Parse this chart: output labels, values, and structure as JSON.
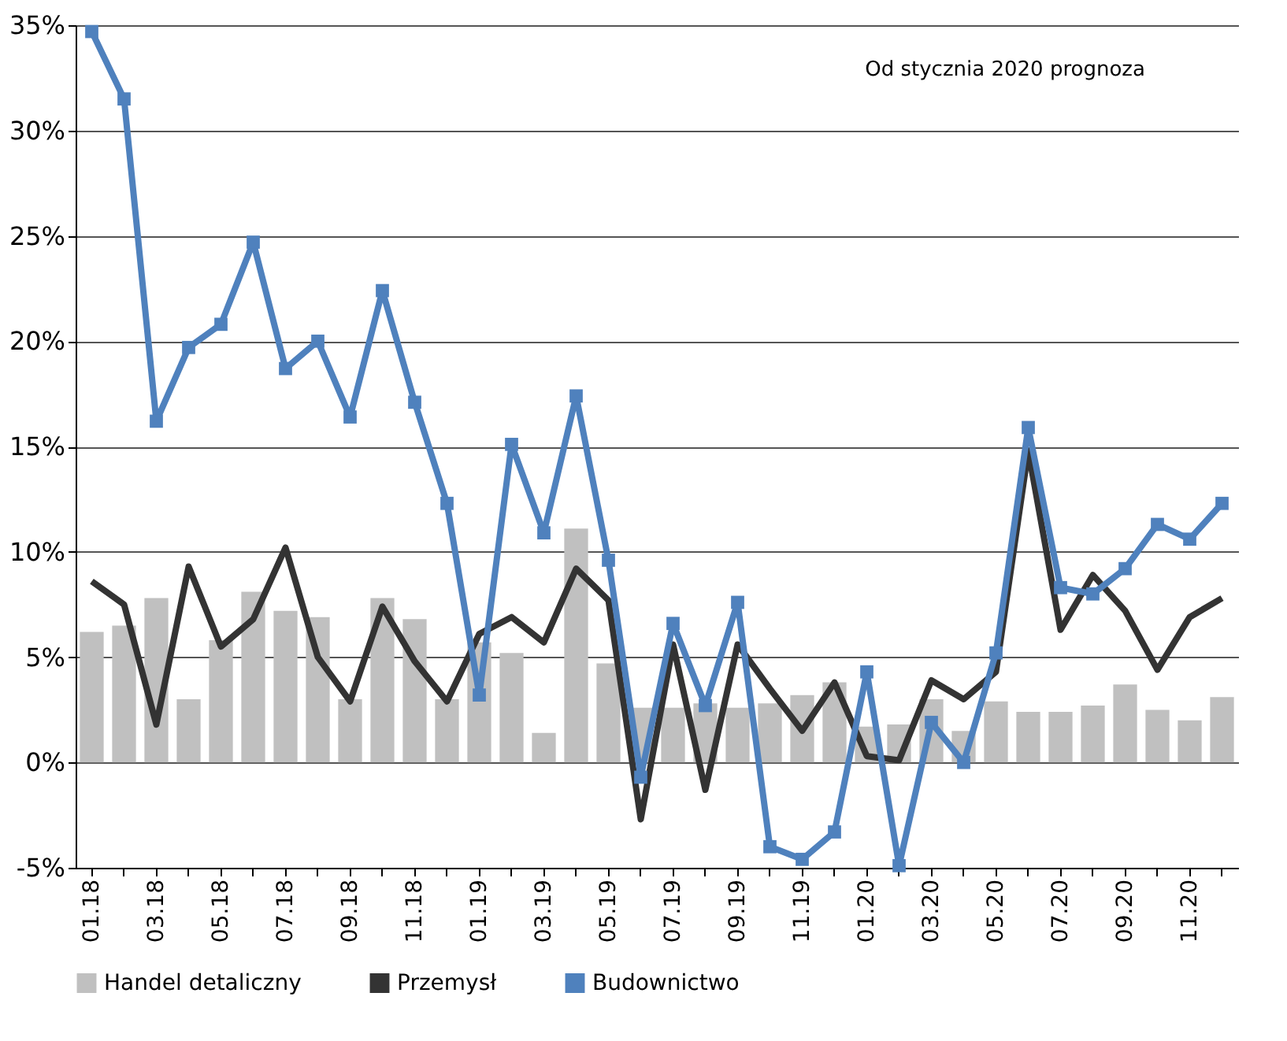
{
  "chart_data": {
    "type": "bar",
    "categories": [
      "01.18",
      null,
      "03.18",
      null,
      "05.18",
      null,
      "07.18",
      null,
      "09.18",
      null,
      "11.18",
      null,
      "01.19",
      null,
      "03.19",
      null,
      "05.19",
      null,
      "07.19",
      null,
      "09.19",
      null,
      "11.19",
      null,
      "01.20",
      null,
      "03.20",
      null,
      "05.20",
      null,
      "07.20",
      null,
      "09.20",
      null,
      "11.20",
      null
    ],
    "series": [
      {
        "name": "Handel detaliczny",
        "color": "#c0c0c0",
        "values": [
          6.2,
          6.5,
          7.8,
          3.0,
          5.8,
          8.1,
          7.2,
          6.9,
          3.0,
          7.8,
          6.8,
          3.0,
          5.7,
          5.2,
          1.4,
          11.1,
          4.7,
          2.6,
          2.6,
          2.8,
          2.6,
          2.8,
          3.2,
          3.8,
          1.7,
          1.8,
          3.0,
          1.5,
          2.9,
          2.4,
          2.4,
          2.7,
          3.7,
          2.5,
          2.0,
          3.1
        ]
      },
      {
        "name": "Przemysł",
        "type": "line",
        "marker": "none",
        "color": "#333333",
        "values": [
          8.6,
          7.5,
          1.8,
          9.3,
          5.5,
          6.8,
          10.2,
          5.0,
          2.9,
          7.4,
          4.8,
          2.9,
          6.1,
          6.9,
          5.7,
          9.2,
          7.7,
          -2.7,
          5.6,
          -1.3,
          5.6,
          3.5,
          1.5,
          3.8,
          0.3,
          0.1,
          3.9,
          3.0,
          4.3,
          14.8,
          6.3,
          8.9,
          7.2,
          4.4,
          6.9,
          7.8
        ]
      },
      {
        "name": "Budownictwo",
        "type": "line",
        "marker": "square",
        "color": "#4f81bd",
        "values": [
          34.7,
          31.5,
          16.2,
          19.7,
          20.8,
          24.7,
          18.7,
          20.0,
          16.4,
          22.4,
          17.1,
          12.3,
          3.2,
          15.1,
          10.9,
          17.4,
          9.6,
          -0.7,
          6.6,
          2.7,
          7.6,
          -4.0,
          -4.6,
          -3.3,
          4.3,
          -4.9,
          1.9,
          0.0,
          5.2,
          15.9,
          8.3,
          8.0,
          9.2,
          11.3,
          10.6,
          12.3
        ]
      }
    ],
    "ylim": [
      -5,
      35
    ],
    "yticks": [
      {
        "value": -5,
        "label": "-5%"
      },
      {
        "value": 0,
        "label": "0%"
      },
      {
        "value": 5,
        "label": "5%"
      },
      {
        "value": 10,
        "label": "10%"
      },
      {
        "value": 15,
        "label": "15%"
      },
      {
        "value": 20,
        "label": "20%"
      },
      {
        "value": 25,
        "label": "25%"
      },
      {
        "value": 30,
        "label": "30%"
      },
      {
        "value": 35,
        "label": "35%"
      }
    ],
    "grid": "y",
    "legend": "bottom",
    "annotations": [
      "Od stycznia 2020 prognoza"
    ]
  }
}
